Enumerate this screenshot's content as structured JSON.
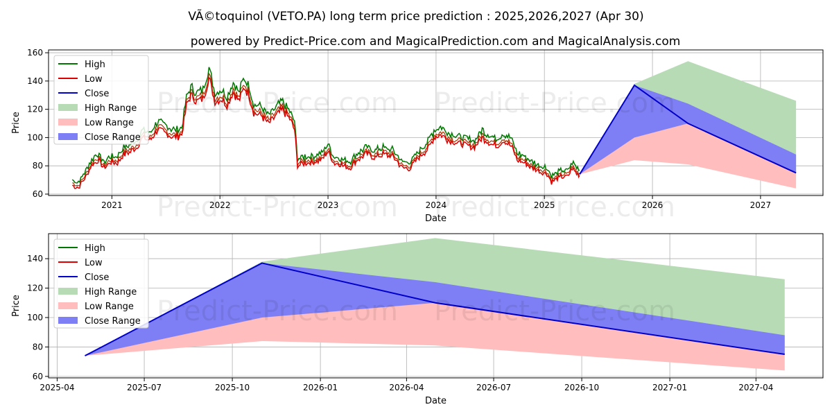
{
  "title": "VÃ©toquinol (VETO.PA) long term price prediction : 2025,2026,2027 (Apr 30)",
  "subtitle": "powered by Predict-Price.com and MagicalPrediction.com and MagicalAnalysis.com",
  "watermark": "Predict-Price.com",
  "colors": {
    "high": "#007700",
    "low": "#dd0000",
    "close": "#0000cc",
    "high_range": "#b7dcb5",
    "low_range": "#ffbdbd",
    "close_range": "#7f7ff5"
  },
  "legend": [
    "High",
    "Low",
    "Close",
    "High Range",
    "Low Range",
    "Close Range"
  ],
  "chart_data": [
    {
      "type": "line",
      "xlabel": "Date",
      "ylabel": "Price",
      "x_range": [
        "2020-06-01",
        "2027-07-31"
      ],
      "ylim": [
        59,
        162
      ],
      "x_ticks": [
        "2021",
        "2022",
        "2023",
        "2024",
        "2025",
        "2026",
        "2027"
      ],
      "y_ticks": [
        60,
        80,
        100,
        120,
        140,
        160
      ],
      "grid": true,
      "legend_position": "upper-left",
      "history_close": [
        [
          "2020-08-20",
          68
        ],
        [
          "2020-09-10",
          66
        ],
        [
          "2020-10-05",
          74
        ],
        [
          "2020-10-25",
          82
        ],
        [
          "2020-11-15",
          86
        ],
        [
          "2020-12-05",
          80
        ],
        [
          "2020-12-25",
          84
        ],
        [
          "2021-01-20",
          84
        ],
        [
          "2021-02-10",
          90
        ],
        [
          "2021-03-05",
          92
        ],
        [
          "2021-03-25",
          95
        ],
        [
          "2021-04-15",
          102
        ],
        [
          "2021-05-10",
          100
        ],
        [
          "2021-06-05",
          108
        ],
        [
          "2021-07-01",
          105
        ],
        [
          "2021-08-01",
          102
        ],
        [
          "2021-08-25",
          104
        ],
        [
          "2021-09-10",
          125
        ],
        [
          "2021-09-25",
          132
        ],
        [
          "2021-10-15",
          128
        ],
        [
          "2021-11-05",
          130
        ],
        [
          "2021-11-25",
          145
        ],
        [
          "2021-12-15",
          128
        ],
        [
          "2022-01-05",
          130
        ],
        [
          "2022-01-25",
          125
        ],
        [
          "2022-02-15",
          135
        ],
        [
          "2022-03-05",
          128
        ],
        [
          "2022-03-25",
          138
        ],
        [
          "2022-04-10",
          132
        ],
        [
          "2022-04-25",
          120
        ],
        [
          "2022-05-20",
          118
        ],
        [
          "2022-06-15",
          112
        ],
        [
          "2022-07-10",
          118
        ],
        [
          "2022-08-01",
          122
        ],
        [
          "2022-08-25",
          115
        ],
        [
          "2022-09-10",
          108
        ],
        [
          "2022-09-20",
          82
        ],
        [
          "2022-10-15",
          84
        ],
        [
          "2022-11-10",
          84
        ],
        [
          "2022-12-10",
          86
        ],
        [
          "2023-01-01",
          92
        ],
        [
          "2023-01-20",
          84
        ],
        [
          "2023-02-20",
          82
        ],
        [
          "2023-03-15",
          80
        ],
        [
          "2023-04-10",
          86
        ],
        [
          "2023-05-10",
          90
        ],
        [
          "2023-06-10",
          88
        ],
        [
          "2023-07-10",
          90
        ],
        [
          "2023-08-10",
          88
        ],
        [
          "2023-09-10",
          80
        ],
        [
          "2023-10-05",
          80
        ],
        [
          "2023-11-05",
          88
        ],
        [
          "2023-12-05",
          94
        ],
        [
          "2023-12-25",
          102
        ],
        [
          "2024-01-20",
          104
        ],
        [
          "2024-02-15",
          100
        ],
        [
          "2024-03-15",
          98
        ],
        [
          "2024-04-15",
          96
        ],
        [
          "2024-05-10",
          95
        ],
        [
          "2024-06-05",
          102
        ],
        [
          "2024-07-01",
          98
        ],
        [
          "2024-07-25",
          96
        ],
        [
          "2024-08-15",
          100
        ],
        [
          "2024-09-10",
          96
        ],
        [
          "2024-10-01",
          86
        ],
        [
          "2024-10-25",
          84
        ],
        [
          "2024-11-20",
          80
        ],
        [
          "2024-12-15",
          78
        ],
        [
          "2025-01-10",
          76
        ],
        [
          "2025-01-25",
          70
        ],
        [
          "2025-02-10",
          72
        ],
        [
          "2025-03-01",
          74
        ],
        [
          "2025-03-20",
          74
        ],
        [
          "2025-04-05",
          80
        ],
        [
          "2025-04-20",
          76
        ],
        [
          "2025-04-30",
          75
        ]
      ],
      "prediction": {
        "dates": [
          "2025-04-30",
          "2025-11-01",
          "2026-05-01",
          "2027-05-01"
        ],
        "high": [
          74,
          138,
          154,
          126
        ],
        "low": [
          74,
          84,
          81,
          64
        ],
        "close": [
          74,
          137,
          110,
          75
        ],
        "close_band_upper": [
          74,
          137,
          124,
          88
        ],
        "close_band_lower": [
          74,
          100,
          110,
          75
        ]
      }
    },
    {
      "type": "line",
      "xlabel": "Date",
      "ylabel": "Price",
      "x_range": [
        "2025-03-23",
        "2027-06-10"
      ],
      "ylim": [
        59,
        157
      ],
      "x_ticks": [
        "2025-04",
        "2025-07",
        "2025-10",
        "2026-01",
        "2026-04",
        "2026-07",
        "2026-10",
        "2027-01",
        "2027-04"
      ],
      "y_ticks": [
        60,
        80,
        100,
        120,
        140
      ],
      "grid": true,
      "legend_position": "upper-left",
      "prediction": {
        "dates": [
          "2025-04-30",
          "2025-11-01",
          "2026-05-01",
          "2027-05-01"
        ],
        "high": [
          74,
          138,
          154,
          126
        ],
        "low": [
          74,
          84,
          81,
          64
        ],
        "close": [
          74,
          137,
          110,
          75
        ],
        "close_band_upper": [
          74,
          137,
          124,
          88
        ],
        "close_band_lower": [
          74,
          100,
          110,
          75
        ]
      }
    }
  ]
}
